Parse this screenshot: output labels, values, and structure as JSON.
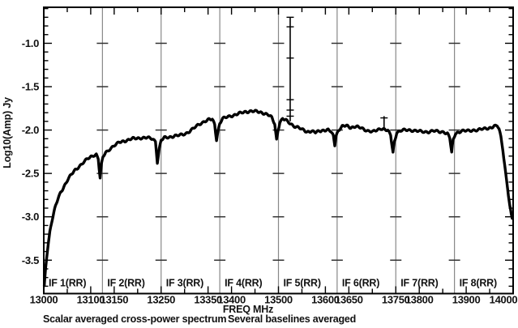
{
  "page": {
    "background": "#ffffff"
  },
  "captions": {
    "left": "Scalar averaged cross-power spectrum",
    "right": "Several baselines averaged"
  },
  "chart_data": {
    "type": "line",
    "title": "",
    "xlabel": "FREQ MHz",
    "ylabel": "Log10(Amp) Jy",
    "xlim": [
      13000,
      14000
    ],
    "ylim": [
      -3.885,
      -0.585
    ],
    "grid": "vertical lines at IF band boundaries with tick crosses at major y levels",
    "legend": "none",
    "x_labeled_ticks": [
      13000,
      13100,
      13150,
      13250,
      13350,
      13400,
      13500,
      13600,
      13650,
      13750,
      13800,
      13900,
      14000
    ],
    "x_minor_tick_step": 50,
    "y_labeled_ticks": [
      -1.0,
      -1.5,
      -2.0,
      -2.5,
      -3.0,
      -3.5
    ],
    "y_minor_tick_step": 0.1,
    "if_bands": [
      {
        "label": "IF 1(RR)",
        "start": 13000,
        "end": 13125
      },
      {
        "label": "IF 2(RR)",
        "start": 13125,
        "end": 13250
      },
      {
        "label": "IF 3(RR)",
        "start": 13250,
        "end": 13375
      },
      {
        "label": "IF 4(RR)",
        "start": 13375,
        "end": 13500
      },
      {
        "label": "IF 5(RR)",
        "start": 13500,
        "end": 13625
      },
      {
        "label": "IF 6(RR)",
        "start": 13625,
        "end": 13750
      },
      {
        "label": "IF 7(RR)",
        "start": 13750,
        "end": 13875
      },
      {
        "label": "IF 8(RR)",
        "start": 13875,
        "end": 14000
      }
    ],
    "series": [
      {
        "name": "scalar averaged cross-power spectrum, several baselines averaged",
        "units": {
          "x": "MHz",
          "y": "log10(Jy)"
        },
        "color": "#000000",
        "points": [
          [
            13001,
            -3.8
          ],
          [
            13002,
            -3.73
          ],
          [
            13004,
            -3.6
          ],
          [
            13006,
            -3.48
          ],
          [
            13008,
            -3.38
          ],
          [
            13010,
            -3.28
          ],
          [
            13013,
            -3.17
          ],
          [
            13016,
            -3.08
          ],
          [
            13020,
            -2.98
          ],
          [
            13025,
            -2.88
          ],
          [
            13030,
            -2.8
          ],
          [
            13036,
            -2.72
          ],
          [
            13043,
            -2.65
          ],
          [
            13050,
            -2.58
          ],
          [
            13058,
            -2.52
          ],
          [
            13067,
            -2.46
          ],
          [
            13077,
            -2.41
          ],
          [
            13087,
            -2.36
          ],
          [
            13097,
            -2.32
          ],
          [
            13106,
            -2.29
          ],
          [
            13112,
            -2.28
          ],
          [
            13116,
            -2.33
          ],
          [
            13120,
            -2.55
          ],
          [
            13123,
            -2.4
          ],
          [
            13126,
            -2.31
          ],
          [
            13132,
            -2.26
          ],
          [
            13140,
            -2.22
          ],
          [
            13150,
            -2.18
          ],
          [
            13162,
            -2.14
          ],
          [
            13175,
            -2.12
          ],
          [
            13190,
            -2.1
          ],
          [
            13205,
            -2.09
          ],
          [
            13220,
            -2.09
          ],
          [
            13232,
            -2.1
          ],
          [
            13238,
            -2.13
          ],
          [
            13242,
            -2.37
          ],
          [
            13246,
            -2.22
          ],
          [
            13250,
            -2.12
          ],
          [
            13257,
            -2.09
          ],
          [
            13267,
            -2.08
          ],
          [
            13278,
            -2.07
          ],
          [
            13290,
            -2.06
          ],
          [
            13302,
            -2.04
          ],
          [
            13312,
            -2.01
          ],
          [
            13322,
            -1.97
          ],
          [
            13332,
            -1.93
          ],
          [
            13342,
            -1.9
          ],
          [
            13352,
            -1.88
          ],
          [
            13359,
            -1.88
          ],
          [
            13364,
            -1.93
          ],
          [
            13368,
            -2.11
          ],
          [
            13372,
            -1.99
          ],
          [
            13375,
            -1.92
          ],
          [
            13381,
            -1.87
          ],
          [
            13391,
            -1.85
          ],
          [
            13403,
            -1.83
          ],
          [
            13416,
            -1.81
          ],
          [
            13430,
            -1.79
          ],
          [
            13443,
            -1.78
          ],
          [
            13455,
            -1.79
          ],
          [
            13466,
            -1.8
          ],
          [
            13477,
            -1.82
          ],
          [
            13486,
            -1.86
          ],
          [
            13492,
            -1.93
          ],
          [
            13496,
            -2.11
          ],
          [
            13499,
            -2.0
          ],
          [
            13503,
            -1.91
          ],
          [
            13509,
            -1.87
          ],
          [
            13516,
            -1.89
          ],
          [
            13524,
            -1.92
          ],
          [
            13532,
            -1.95
          ],
          [
            13542,
            -1.97
          ],
          [
            13552,
            -2.0
          ],
          [
            13561,
            -2.02
          ],
          [
            13570,
            -2.01
          ],
          [
            13579,
            -2.03
          ],
          [
            13588,
            -2.01
          ],
          [
            13597,
            -2.0
          ],
          [
            13606,
            -2.0
          ],
          [
            13612,
            -2.02
          ],
          [
            13617,
            -2.07
          ],
          [
            13620,
            -2.17
          ],
          [
            13623,
            -2.06
          ],
          [
            13628,
            -2.0
          ],
          [
            13636,
            -1.96
          ],
          [
            13645,
            -1.95
          ],
          [
            13654,
            -1.97
          ],
          [
            13663,
            -1.96
          ],
          [
            13672,
            -1.97
          ],
          [
            13682,
            -1.99
          ],
          [
            13692,
            -2.01
          ],
          [
            13702,
            -2.02
          ],
          [
            13711,
            -2.0
          ],
          [
            13719,
            -1.98
          ],
          [
            13726,
            -1.99
          ],
          [
            13733,
            -2.01
          ],
          [
            13739,
            -2.06
          ],
          [
            13744,
            -2.26
          ],
          [
            13747,
            -2.13
          ],
          [
            13752,
            -2.03
          ],
          [
            13760,
            -2.01
          ],
          [
            13770,
            -2.0
          ],
          [
            13782,
            -2.0
          ],
          [
            13794,
            -2.01
          ],
          [
            13806,
            -2.02
          ],
          [
            13818,
            -2.02
          ],
          [
            13830,
            -2.01
          ],
          [
            13842,
            -2.02
          ],
          [
            13852,
            -2.02
          ],
          [
            13860,
            -2.04
          ],
          [
            13865,
            -2.09
          ],
          [
            13869,
            -2.26
          ],
          [
            13872,
            -2.12
          ],
          [
            13877,
            -2.04
          ],
          [
            13884,
            -2.02
          ],
          [
            13894,
            -2.01
          ],
          [
            13904,
            -2.01
          ],
          [
            13914,
            -2.0
          ],
          [
            13924,
            -2.0
          ],
          [
            13934,
            -1.99
          ],
          [
            13944,
            -1.98
          ],
          [
            13953,
            -1.97
          ],
          [
            13960,
            -1.96
          ],
          [
            13966,
            -1.95
          ],
          [
            13970,
            -1.99
          ],
          [
            13974,
            -2.08
          ],
          [
            13978,
            -2.22
          ],
          [
            13982,
            -2.4
          ],
          [
            13986,
            -2.58
          ],
          [
            13990,
            -2.75
          ],
          [
            13993,
            -2.88
          ],
          [
            13996,
            -2.98
          ],
          [
            13998,
            -3.02
          ]
        ]
      }
    ],
    "spikes": [
      {
        "name": "narrow spike with error bars",
        "freq": 13525,
        "base": -1.9,
        "top": -0.7,
        "error_ticks": [
          -0.7,
          -0.81,
          -1.17,
          -1.65,
          -1.77,
          -1.84
        ]
      },
      {
        "name": "small spike with error bar",
        "freq": 13725,
        "base": -1.99,
        "top": -1.84,
        "error_ticks": [
          -1.86
        ]
      }
    ],
    "colors": {
      "curve": "#000000",
      "frame": "#000000",
      "boundary_grid": "#888888",
      "cross_tick": "#333333",
      "text": "#111111",
      "background": "#ffffff"
    }
  }
}
